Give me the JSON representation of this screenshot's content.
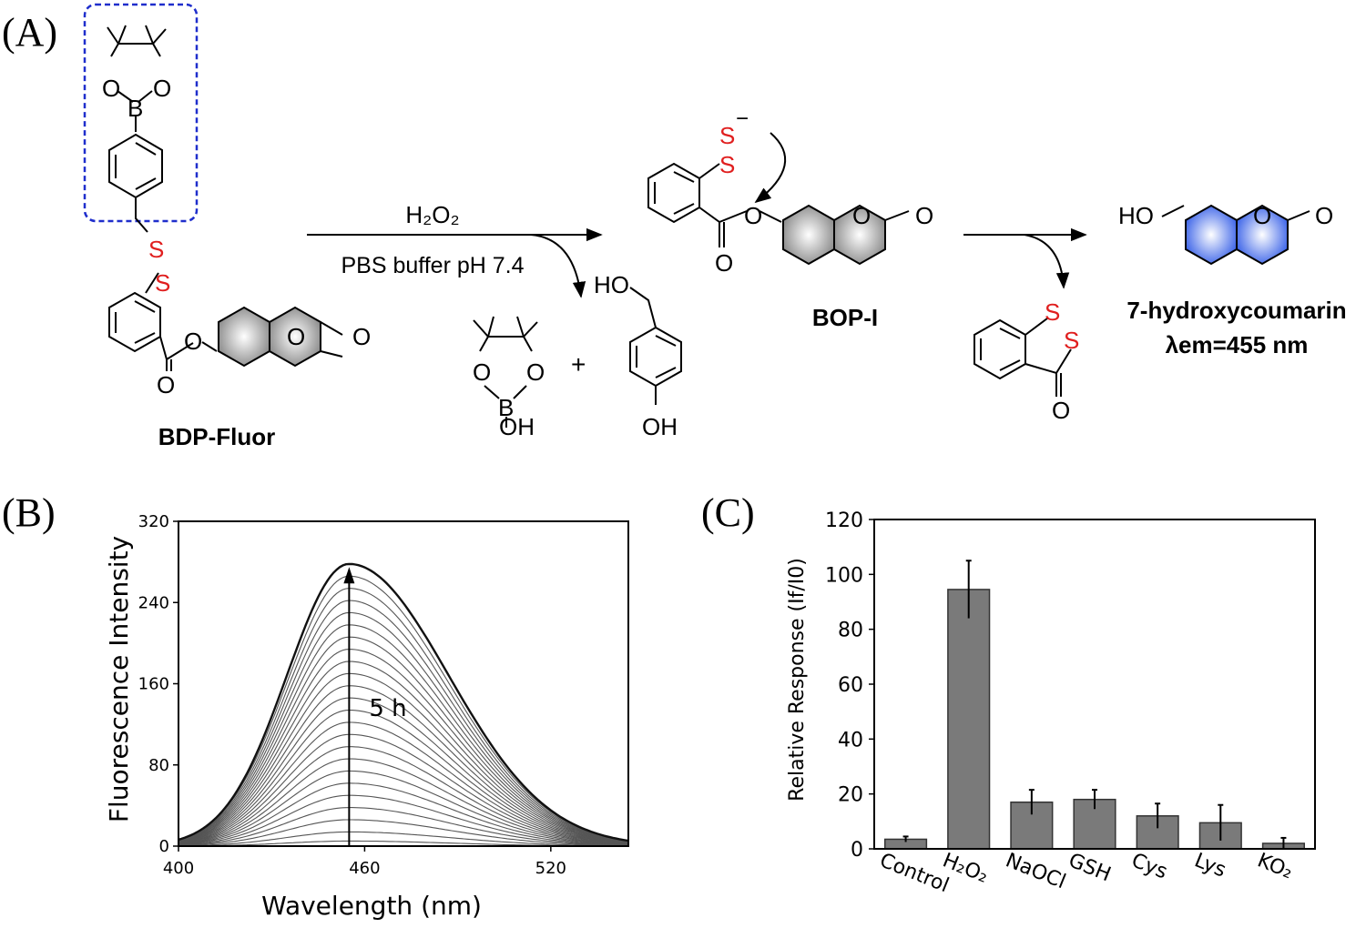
{
  "panels": {
    "a": {
      "label": "(A)",
      "reagent_top": "H₂O₂",
      "reagent_bottom": "PBS buffer pH 7.4",
      "compounds": {
        "bdp_name": "BDP-Fluor",
        "bop_name": "BOP-I",
        "product_name": "7-hydroxycoumarin",
        "lambda_text": "λem=455 nm"
      },
      "atoms": {
        "O": "O",
        "B": "B",
        "S": "S",
        "HO": "HO",
        "OH": "OH",
        "plus": "+",
        "minus": "−"
      },
      "colors": {
        "sulfur": "#e01f1f",
        "boronate_box": "#1f2ecc",
        "product_ring": "#3b63e8"
      }
    },
    "b": {
      "label": "(B)",
      "annotation": "5 h"
    },
    "c": {
      "label": "(C)"
    }
  },
  "chart_data": [
    {
      "type": "line",
      "xlabel": "Wavelength (nm)",
      "ylabel": "Fluorescence Intensity",
      "xlim": [
        400,
        545
      ],
      "ylim": [
        0,
        320
      ],
      "xticks": [
        400,
        460,
        520
      ],
      "yticks": [
        0,
        80,
        160,
        240,
        320
      ],
      "peak_x": 455,
      "peak_values": [
        5,
        14,
        26,
        38,
        50,
        62,
        74,
        86,
        98,
        110,
        122,
        134,
        146,
        158,
        170,
        182,
        194,
        206,
        218,
        230,
        242,
        254,
        266,
        278
      ],
      "grid": false,
      "legend": "none"
    },
    {
      "type": "bar",
      "ylabel": "Relative Response (If/I0)",
      "categories": [
        "Control",
        "H₂O₂",
        "NaOCl",
        "GSH",
        "Cys",
        "Lys",
        "KO₂"
      ],
      "values": [
        3.5,
        94.5,
        17,
        18,
        12,
        9.5,
        2
      ],
      "errors": [
        1,
        10.5,
        4.5,
        3.5,
        4.5,
        6.5,
        2
      ],
      "ylim": [
        0,
        120
      ],
      "yticks": [
        0,
        20,
        40,
        60,
        80,
        100,
        120
      ],
      "bar_color": "#7a7a7a",
      "grid": false
    }
  ]
}
